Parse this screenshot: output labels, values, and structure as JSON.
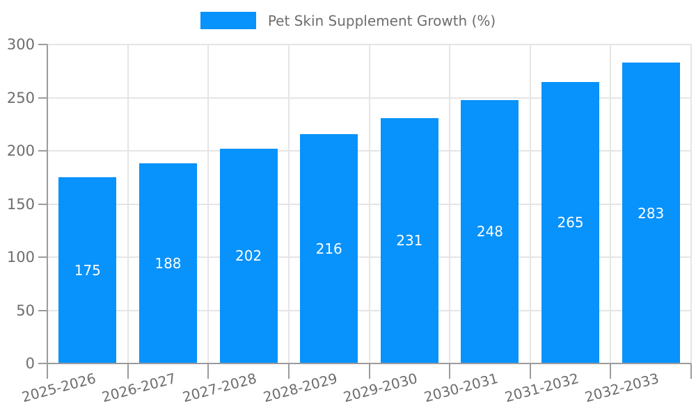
{
  "legend": {
    "label": "Pet Skin Supplement Growth (%)"
  },
  "chart_data": {
    "type": "bar",
    "title": "Pet Skin Supplement Growth (%)",
    "series_name": "Pet Skin Supplement Growth (%)",
    "categories": [
      "2025-2026",
      "2026-2027",
      "2027-2028",
      "2028-2029",
      "2029-2030",
      "2030-2031",
      "2031-2032",
      "2032-2033"
    ],
    "values": [
      175,
      188,
      202,
      216,
      231,
      248,
      265,
      283
    ],
    "value_labels": [
      "175",
      "188",
      "202",
      "216",
      "231",
      "248",
      "265",
      "283"
    ],
    "xlabel": "",
    "ylabel": "",
    "ylim": [
      0,
      300
    ],
    "yticks": [
      0,
      50,
      100,
      150,
      200,
      250,
      300
    ],
    "grid": true,
    "legend_position": "top-center",
    "colors": {
      "bar": "#0892fb",
      "value_label": "#ffffff",
      "grid": "#e5e5e5",
      "axis": "#9b9b9b",
      "tick_text": "#6d6d6d"
    }
  }
}
